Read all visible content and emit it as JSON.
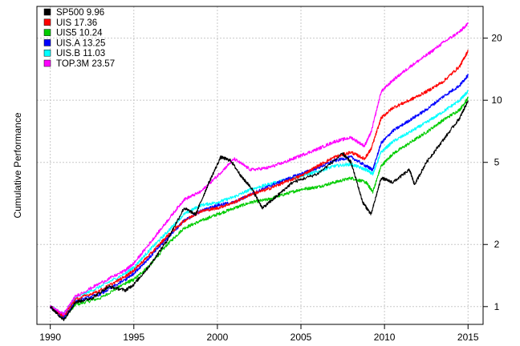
{
  "chart_data": {
    "type": "line",
    "title": "",
    "xlabel": "",
    "ylabel": "Cumulative Performance",
    "x_ticks": [
      "1990",
      "1995",
      "2000",
      "2005",
      "2010",
      "2015"
    ],
    "x_tick_values": [
      1990,
      1995,
      2000,
      2005,
      2010,
      2015
    ],
    "y_ticks": [
      "1",
      "2",
      "5",
      "10",
      "20"
    ],
    "y_tick_values": [
      1,
      2,
      5,
      10,
      20
    ],
    "xlim": [
      1989.2,
      2015.9
    ],
    "ylim": [
      0.82,
      28.5
    ],
    "y_scale": "log",
    "y_axis_side": "right",
    "grid": true,
    "legend_position": "top-left",
    "series": [
      {
        "name": "SP500  9.96",
        "color": "#000000",
        "points": [
          [
            1990,
            1.0
          ],
          [
            1990.8,
            0.86
          ],
          [
            1991.5,
            1.05
          ],
          [
            1992.5,
            1.1
          ],
          [
            1993.5,
            1.25
          ],
          [
            1994.5,
            1.2
          ],
          [
            1995,
            1.28
          ],
          [
            1996,
            1.6
          ],
          [
            1997,
            2.1
          ],
          [
            1998,
            3.0
          ],
          [
            1998.7,
            2.8
          ],
          [
            1999.5,
            4.0
          ],
          [
            2000.2,
            5.3
          ],
          [
            2000.8,
            5.1
          ],
          [
            2001.5,
            4.2
          ],
          [
            2002,
            3.8
          ],
          [
            2002.7,
            3.0
          ],
          [
            2003.5,
            3.4
          ],
          [
            2004.5,
            4.0
          ],
          [
            2006,
            4.4
          ],
          [
            2007.5,
            5.5
          ],
          [
            2008,
            5.0
          ],
          [
            2008.7,
            3.2
          ],
          [
            2009.2,
            2.8
          ],
          [
            2009.8,
            4.2
          ],
          [
            2010.5,
            4.0
          ],
          [
            2011.5,
            4.6
          ],
          [
            2011.8,
            3.9
          ],
          [
            2012.5,
            5.0
          ],
          [
            2013.5,
            6.4
          ],
          [
            2014.5,
            8.2
          ],
          [
            2015,
            9.96
          ]
        ]
      },
      {
        "name": "UIS 17.36",
        "color": "#ff0000",
        "points": [
          [
            1990,
            1.0
          ],
          [
            1990.8,
            0.9
          ],
          [
            1991.5,
            1.08
          ],
          [
            1993,
            1.2
          ],
          [
            1994.5,
            1.4
          ],
          [
            1995,
            1.5
          ],
          [
            1996,
            1.8
          ],
          [
            1997,
            2.2
          ],
          [
            1998,
            2.6
          ],
          [
            1999,
            2.9
          ],
          [
            2000,
            3.0
          ],
          [
            2001,
            3.2
          ],
          [
            2002,
            3.5
          ],
          [
            2003,
            3.7
          ],
          [
            2004,
            4.0
          ],
          [
            2005,
            4.3
          ],
          [
            2006,
            4.8
          ],
          [
            2007,
            5.3
          ],
          [
            2008,
            5.6
          ],
          [
            2008.8,
            5.2
          ],
          [
            2009.2,
            5.8
          ],
          [
            2009.8,
            8.2
          ],
          [
            2010.5,
            9.2
          ],
          [
            2011.5,
            10.0
          ],
          [
            2012.5,
            11.0
          ],
          [
            2013.5,
            12.3
          ],
          [
            2014.5,
            14.6
          ],
          [
            2015,
            17.36
          ]
        ]
      },
      {
        "name": "UIS5 10.24",
        "color": "#00cc00",
        "points": [
          [
            1990,
            1.0
          ],
          [
            1990.8,
            0.88
          ],
          [
            1991.5,
            1.02
          ],
          [
            1993,
            1.1
          ],
          [
            1994.5,
            1.3
          ],
          [
            1995,
            1.35
          ],
          [
            1996,
            1.6
          ],
          [
            1997,
            2.0
          ],
          [
            1998,
            2.4
          ],
          [
            1999,
            2.6
          ],
          [
            2000,
            2.8
          ],
          [
            2001,
            3.0
          ],
          [
            2002,
            3.2
          ],
          [
            2003,
            3.3
          ],
          [
            2004,
            3.5
          ],
          [
            2005,
            3.7
          ],
          [
            2006,
            3.8
          ],
          [
            2007,
            4.0
          ],
          [
            2008,
            4.2
          ],
          [
            2008.9,
            4.0
          ],
          [
            2009.3,
            3.6
          ],
          [
            2009.8,
            4.8
          ],
          [
            2010.5,
            5.5
          ],
          [
            2011.5,
            6.2
          ],
          [
            2012.5,
            7.0
          ],
          [
            2013.5,
            8.0
          ],
          [
            2014.5,
            9.0
          ],
          [
            2015,
            10.24
          ]
        ]
      },
      {
        "name": "UIS.A 13.25",
        "color": "#0000ff",
        "points": [
          [
            1990,
            1.0
          ],
          [
            1990.8,
            0.88
          ],
          [
            1991.5,
            1.06
          ],
          [
            1993,
            1.15
          ],
          [
            1994.5,
            1.35
          ],
          [
            1995,
            1.45
          ],
          [
            1996,
            1.75
          ],
          [
            1997,
            2.15
          ],
          [
            1998,
            2.6
          ],
          [
            1999,
            2.9
          ],
          [
            2000,
            3.1
          ],
          [
            2001,
            3.2
          ],
          [
            2002,
            3.5
          ],
          [
            2003,
            3.8
          ],
          [
            2004,
            4.1
          ],
          [
            2005,
            4.4
          ],
          [
            2006,
            4.7
          ],
          [
            2007,
            5.1
          ],
          [
            2008,
            5.3
          ],
          [
            2008.9,
            4.8
          ],
          [
            2009.3,
            4.6
          ],
          [
            2009.8,
            6.2
          ],
          [
            2010.5,
            7.1
          ],
          [
            2011.5,
            8.0
          ],
          [
            2012.5,
            9.0
          ],
          [
            2013.5,
            10.4
          ],
          [
            2014.5,
            11.8
          ],
          [
            2015,
            13.25
          ]
        ]
      },
      {
        "name": "UIS.B 11.03",
        "color": "#00ffff",
        "points": [
          [
            1990,
            1.0
          ],
          [
            1990.8,
            0.92
          ],
          [
            1991.5,
            1.1
          ],
          [
            1993,
            1.25
          ],
          [
            1994.5,
            1.45
          ],
          [
            1995,
            1.55
          ],
          [
            1996,
            1.9
          ],
          [
            1997,
            2.3
          ],
          [
            1998,
            2.8
          ],
          [
            1999,
            3.1
          ],
          [
            2000,
            3.2
          ],
          [
            2001,
            3.4
          ],
          [
            2002,
            3.7
          ],
          [
            2003,
            3.9
          ],
          [
            2004,
            4.1
          ],
          [
            2005,
            4.3
          ],
          [
            2006,
            4.5
          ],
          [
            2007,
            4.8
          ],
          [
            2008,
            4.9
          ],
          [
            2008.9,
            4.6
          ],
          [
            2009.3,
            4.4
          ],
          [
            2009.8,
            5.6
          ],
          [
            2010.5,
            6.3
          ],
          [
            2011.5,
            7.0
          ],
          [
            2012.5,
            7.8
          ],
          [
            2013.5,
            8.8
          ],
          [
            2014.5,
            10.0
          ],
          [
            2015,
            11.03
          ]
        ]
      },
      {
        "name": "TOP.3M 23.57",
        "color": "#ff00ff",
        "points": [
          [
            1990,
            1.0
          ],
          [
            1990.8,
            0.92
          ],
          [
            1991.5,
            1.12
          ],
          [
            1993,
            1.3
          ],
          [
            1994.5,
            1.5
          ],
          [
            1995,
            1.62
          ],
          [
            1996,
            2.05
          ],
          [
            1997,
            2.6
          ],
          [
            1998,
            3.3
          ],
          [
            1999,
            3.6
          ],
          [
            2000,
            4.3
          ],
          [
            2001,
            5.2
          ],
          [
            2002,
            4.6
          ],
          [
            2003,
            4.7
          ],
          [
            2004,
            5.0
          ],
          [
            2005,
            5.4
          ],
          [
            2006,
            5.8
          ],
          [
            2007,
            6.3
          ],
          [
            2008,
            6.6
          ],
          [
            2008.8,
            6.0
          ],
          [
            2009.2,
            7.0
          ],
          [
            2009.8,
            11.0
          ],
          [
            2010.5,
            12.5
          ],
          [
            2011.5,
            14.5
          ],
          [
            2012.5,
            16.5
          ],
          [
            2013.5,
            19.0
          ],
          [
            2014.5,
            21.5
          ],
          [
            2015,
            23.57
          ]
        ]
      }
    ]
  }
}
